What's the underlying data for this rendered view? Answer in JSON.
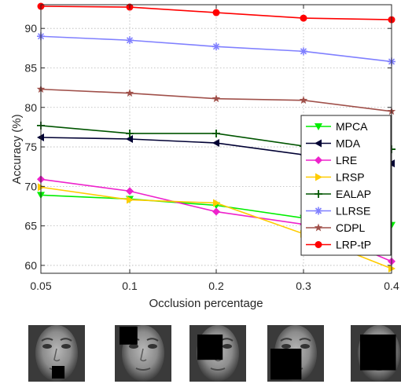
{
  "chart_data": {
    "type": "line",
    "title": "",
    "xlabel": "Occlusion percentage",
    "ylabel": "Accuracy (%)",
    "x": [
      0.05,
      0.1,
      0.2,
      0.3,
      0.4
    ],
    "x_tick_labels": [
      "0.05",
      "0.1",
      "0.2",
      "0.3",
      "0.4"
    ],
    "ylim": [
      59,
      93
    ],
    "y_ticks": [
      60,
      65,
      70,
      75,
      80,
      85,
      90
    ],
    "grid": true,
    "legend_position": "right",
    "series": [
      {
        "name": "MPCA",
        "color": "#00ee00",
        "marker": "triangle-down",
        "values": [
          68.9,
          68.4,
          67.6,
          66.0,
          65.1
        ]
      },
      {
        "name": "MDA",
        "color": "#000033",
        "marker": "triangle-left",
        "values": [
          76.2,
          76.0,
          75.5,
          74.0,
          72.9
        ]
      },
      {
        "name": "LRE",
        "color": "#ee22cc",
        "marker": "diamond",
        "values": [
          70.9,
          69.4,
          66.8,
          65.2,
          60.5
        ]
      },
      {
        "name": "LRSP",
        "color": "#ffcc00",
        "marker": "triangle-right",
        "values": [
          69.9,
          68.3,
          67.9,
          64.0,
          59.6
        ]
      },
      {
        "name": "EALAP",
        "color": "#005500",
        "marker": "plus",
        "values": [
          77.7,
          76.7,
          76.7,
          75.1,
          74.7
        ]
      },
      {
        "name": "LLRSE",
        "color": "#8080ff",
        "marker": "asterisk",
        "values": [
          89.0,
          88.5,
          87.7,
          87.1,
          85.8
        ]
      },
      {
        "name": "CDPL",
        "color": "#a0504a",
        "marker": "star",
        "values": [
          82.3,
          81.8,
          81.1,
          80.9,
          79.5
        ]
      },
      {
        "name": "LRP-tP",
        "color": "#ff0000",
        "marker": "circle",
        "values": [
          92.8,
          92.7,
          92.0,
          91.3,
          91.1
        ]
      }
    ]
  },
  "faces": {
    "count": 5,
    "occlusions": [
      0.05,
      0.1,
      0.2,
      0.3,
      0.4
    ]
  }
}
